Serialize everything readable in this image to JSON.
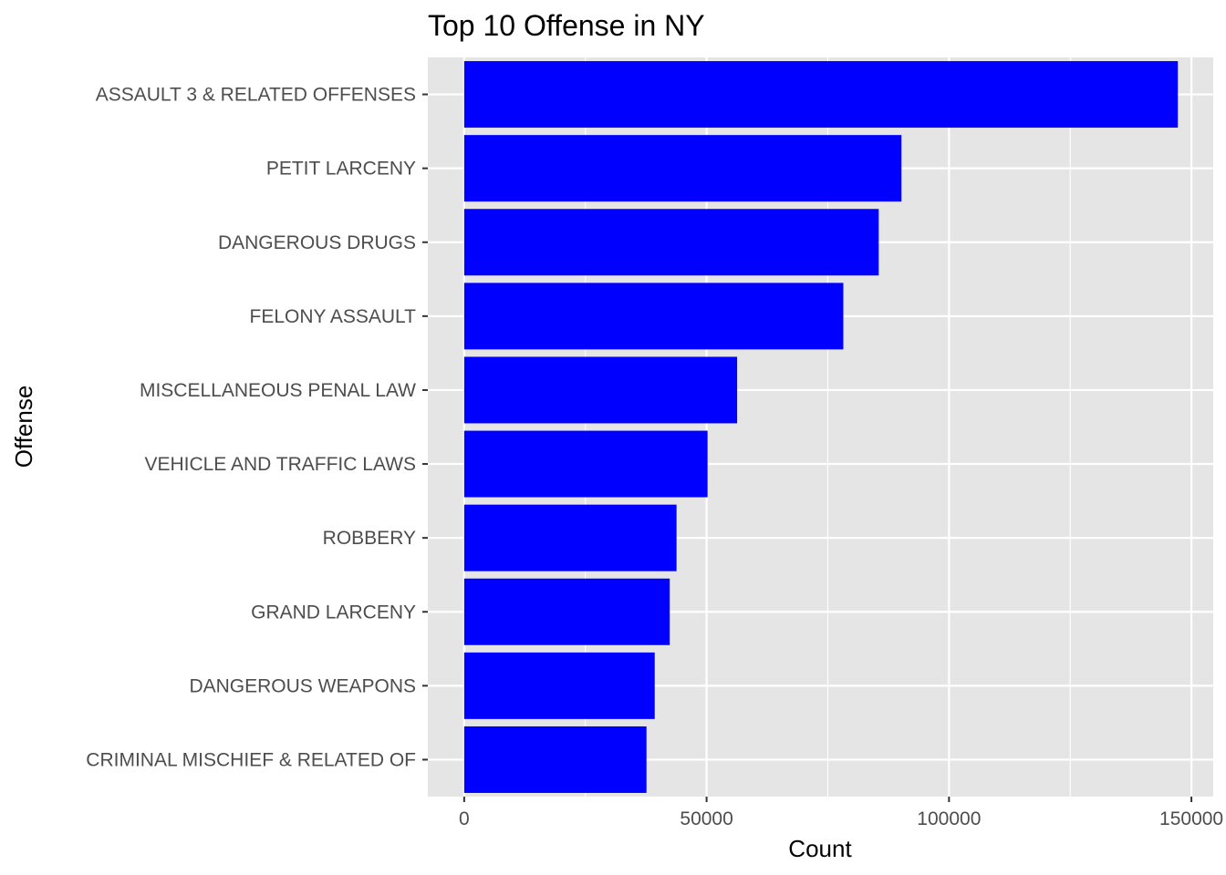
{
  "chart_data": {
    "type": "bar",
    "orientation": "horizontal",
    "title": "Top 10 Offense in NY",
    "xlabel": "Count",
    "ylabel": "Offense",
    "categories": [
      "ASSAULT 3 & RELATED OFFENSES",
      "PETIT LARCENY",
      "DANGEROUS DRUGS",
      "FELONY ASSAULT",
      "MISCELLANEOUS PENAL LAW",
      "VEHICLE AND TRAFFIC LAWS",
      "ROBBERY",
      "GRAND LARCENY",
      "DANGEROUS WEAPONS",
      "CRIMINAL MISCHIEF & RELATED OF"
    ],
    "values": [
      147200,
      90200,
      85500,
      78200,
      56300,
      50200,
      43800,
      42400,
      39300,
      37600
    ],
    "xlim": [
      -7500,
      154500
    ],
    "xticks": [
      0,
      50000,
      100000,
      150000
    ],
    "xtick_labels": [
      "0",
      "50000",
      "100000",
      "150000"
    ],
    "bar_color": "#0000ff",
    "panel_background": "#e5e5e5",
    "grid": true,
    "legend": "none"
  }
}
